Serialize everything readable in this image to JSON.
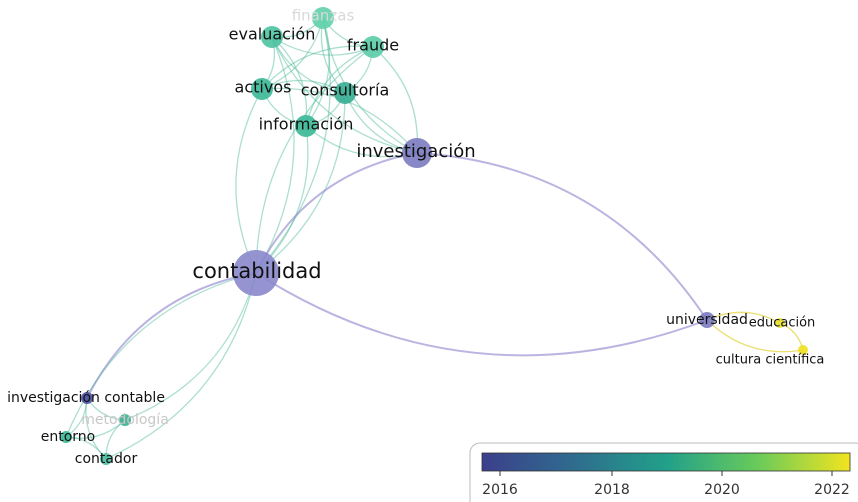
{
  "nodes": [
    {
      "label": "finanzas"
    },
    {
      "label": "evaluación"
    },
    {
      "label": "fraude"
    },
    {
      "label": "activos"
    },
    {
      "label": "consultoría"
    },
    {
      "label": "información"
    },
    {
      "label": "investigación"
    },
    {
      "label": "contabilidad"
    },
    {
      "label": "universidad"
    },
    {
      "label": "educación"
    },
    {
      "label": "cultura científica"
    },
    {
      "label": "investigación contable"
    },
    {
      "label": "metodología"
    },
    {
      "label": "entorno"
    },
    {
      "label": "contador"
    }
  ],
  "legend": {
    "ticks": [
      2016,
      2018,
      2020,
      2022
    ]
  }
}
